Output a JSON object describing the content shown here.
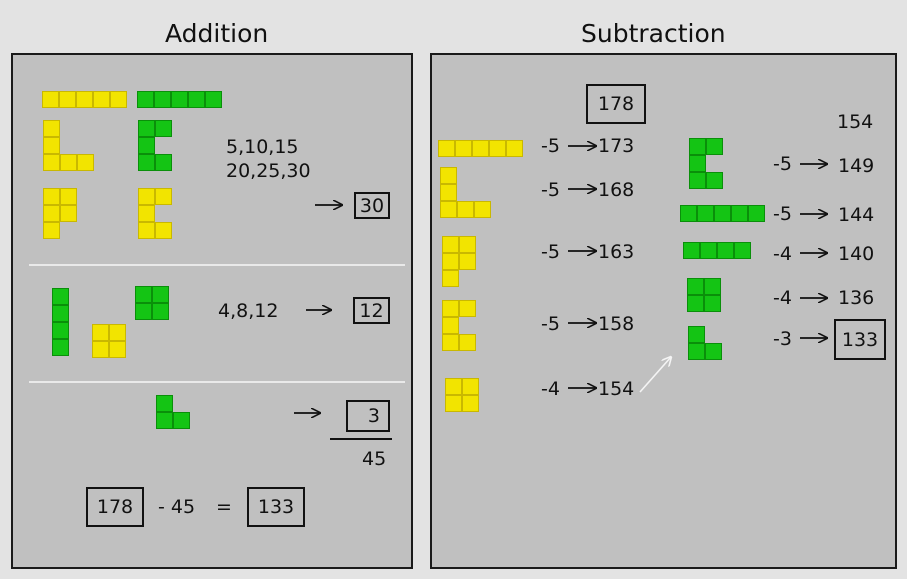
{
  "titles": {
    "addition": "Addition",
    "subtraction": "Subtraction"
  },
  "colors": {
    "yellow": "#f2e400",
    "green": "#14c414",
    "panel": "#c0c0c0"
  },
  "addition": {
    "sequence_line1": "5,10,15",
    "sequence_line2": "20,25,30",
    "result_fives": "30",
    "sequence_fours": "4,8,12",
    "result_fours": "12",
    "result_threes": "3",
    "sum_total": "45",
    "eq_start": "178",
    "eq_minus": "- 45",
    "eq_equals": "=",
    "eq_result": "133"
  },
  "subtraction": {
    "start": "178",
    "left_steps": [
      {
        "op": "-5",
        "result": "173"
      },
      {
        "op": "-5",
        "result": "168"
      },
      {
        "op": "-5",
        "result": "163"
      },
      {
        "op": "-5",
        "result": "158"
      },
      {
        "op": "-4",
        "result": "154"
      }
    ],
    "right_top": "154",
    "right_steps": [
      {
        "op": "-5",
        "result": "149"
      },
      {
        "op": "-5",
        "result": "144"
      },
      {
        "op": "-4",
        "result": "140"
      },
      {
        "op": "-4",
        "result": "136"
      },
      {
        "op": "-3",
        "result": "133"
      }
    ]
  }
}
